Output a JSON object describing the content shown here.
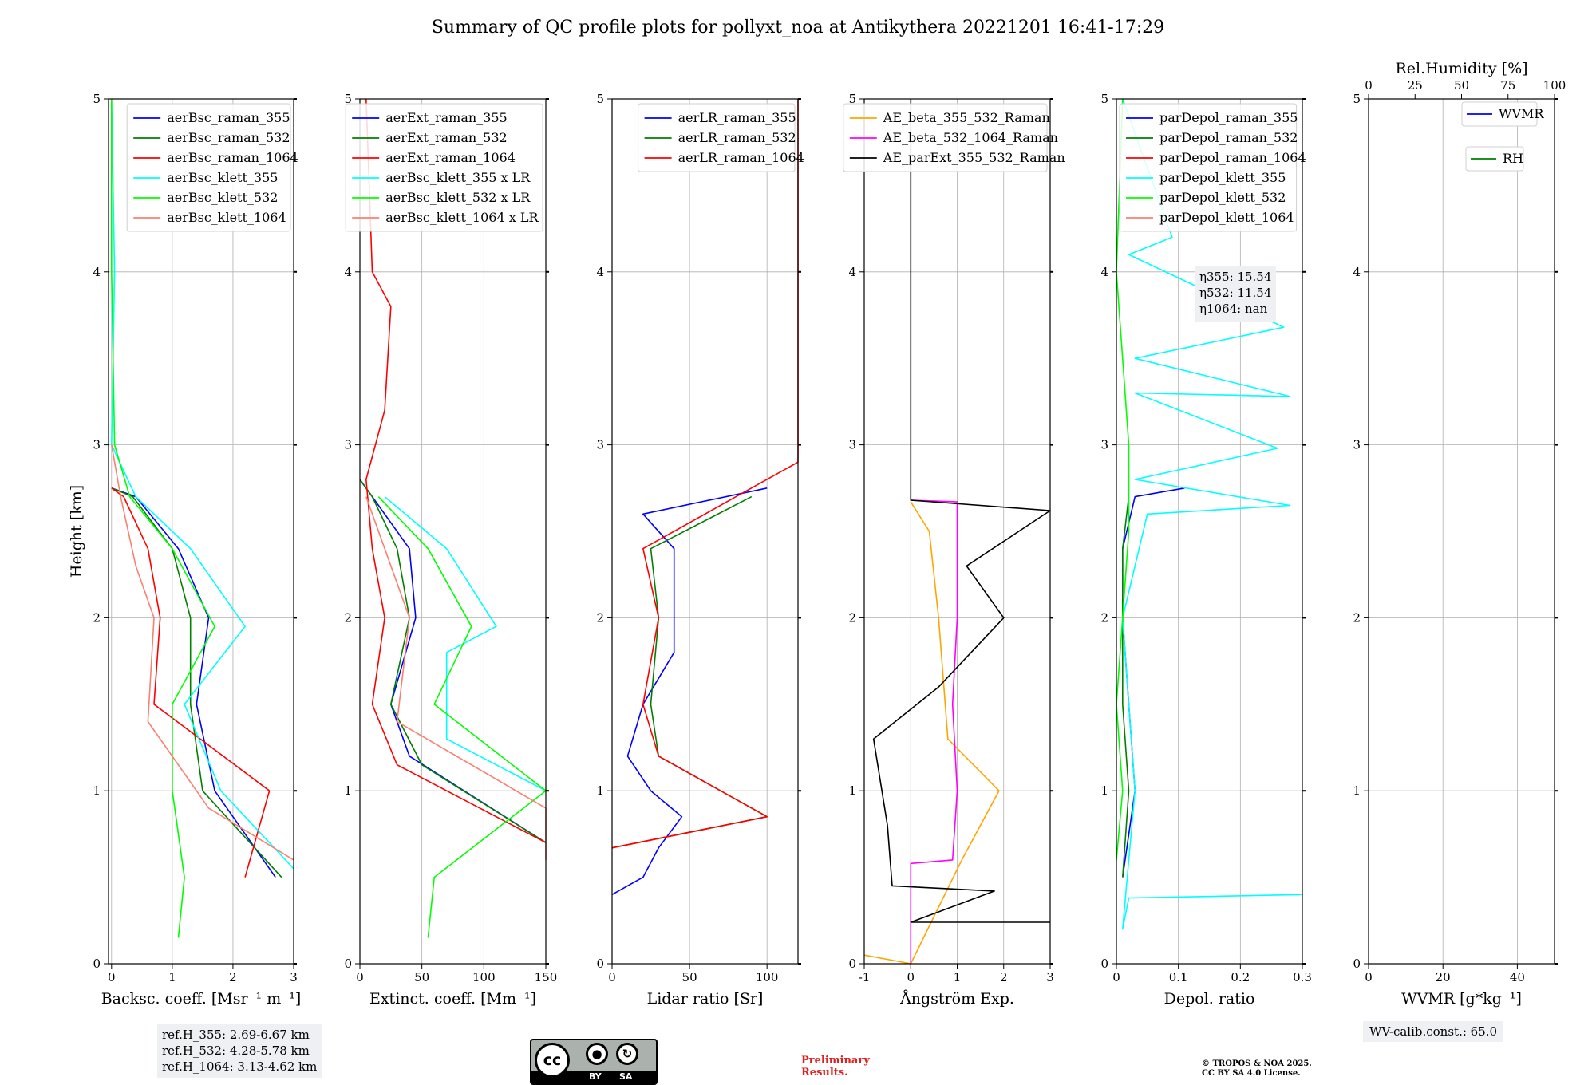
{
  "figure": {
    "title": "Summary of QC profile plots for pollyxt_noa at Antikythera 20221201 16:41-17:29",
    "ref_heights": [
      "ref.H_355: 2.69-6.67 km",
      "ref.H_532: 4.28-5.78 km",
      "ref.H_1064: 3.13-4.62 km"
    ],
    "wv_calib": "WV-calib.const.: 65.0",
    "license_badge": {
      "cc": "cc",
      "by": "BY",
      "sa": "SA"
    },
    "preliminary": [
      "Preliminary",
      "Results."
    ],
    "copyright": [
      "© TROPOS & NOA 2025.",
      "CC BY SA 4.0 License."
    ]
  },
  "colors": {
    "blue": "#0000ff",
    "green": "#007f00",
    "red": "#ff0000",
    "cyan": "#00ffff",
    "lime": "#00ff00",
    "salmon": "#fa8072",
    "orange": "#ffa500",
    "magenta": "#ff00ff",
    "black": "#000000"
  },
  "chart_data": [
    {
      "type": "line",
      "ylabel": "Height [km]",
      "xlabel": "Backsc. coeff. [Msr⁻¹ m⁻¹]",
      "xlim": [
        -0.05,
        3
      ],
      "ylim": [
        0,
        5
      ],
      "xticks": [
        0,
        1,
        2,
        3
      ],
      "yticks": [
        0,
        1,
        2,
        3,
        4,
        5
      ],
      "grid": true,
      "legend": "top-right",
      "series": [
        {
          "name": "aerBsc_raman_355",
          "color": "#0000ff",
          "points": [
            [
              2.7,
              0.5
            ],
            [
              1.7,
              1.0
            ],
            [
              1.4,
              1.5
            ],
            [
              1.6,
              2.0
            ],
            [
              1.1,
              2.4
            ],
            [
              0.4,
              2.7
            ],
            [
              0.0,
              2.75
            ]
          ]
        },
        {
          "name": "aerBsc_raman_532",
          "color": "#007f00",
          "points": [
            [
              2.8,
              0.5
            ],
            [
              1.5,
              1.0
            ],
            [
              1.3,
              1.5
            ],
            [
              1.3,
              2.0
            ],
            [
              1.0,
              2.4
            ],
            [
              0.35,
              2.7
            ],
            [
              0.0,
              2.75
            ]
          ]
        },
        {
          "name": "aerBsc_raman_1064",
          "color": "#ff0000",
          "points": [
            [
              2.2,
              0.5
            ],
            [
              2.6,
              1.0
            ],
            [
              0.7,
              1.5
            ],
            [
              0.8,
              2.0
            ],
            [
              0.6,
              2.4
            ],
            [
              0.2,
              2.7
            ],
            [
              0.0,
              2.75
            ]
          ]
        },
        {
          "name": "aerBsc_klett_355",
          "color": "#00ffff",
          "points": [
            [
              3.0,
              0.55
            ],
            [
              1.8,
              1.0
            ],
            [
              1.2,
              1.5
            ],
            [
              2.2,
              1.95
            ],
            [
              1.3,
              2.4
            ],
            [
              0.4,
              2.7
            ],
            [
              0.0,
              3.0
            ],
            [
              0.05,
              4.0
            ],
            [
              0.0,
              5.0
            ]
          ]
        },
        {
          "name": "aerBsc_klett_532",
          "color": "#00ff00",
          "points": [
            [
              1.1,
              0.15
            ],
            [
              1.2,
              0.5
            ],
            [
              1.0,
              1.0
            ],
            [
              1.0,
              1.5
            ],
            [
              1.7,
              1.95
            ],
            [
              1.0,
              2.4
            ],
            [
              0.3,
              2.7
            ],
            [
              0.05,
              3.0
            ],
            [
              0.0,
              4.0
            ],
            [
              0.0,
              5.0
            ]
          ]
        },
        {
          "name": "aerBsc_klett_1064",
          "color": "#fa8072",
          "points": [
            [
              3.0,
              0.6
            ],
            [
              1.6,
              0.9
            ],
            [
              0.6,
              1.4
            ],
            [
              0.7,
              2.0
            ],
            [
              0.4,
              2.3
            ],
            [
              0.15,
              2.7
            ],
            [
              0.0,
              3.0
            ]
          ]
        }
      ]
    },
    {
      "type": "line",
      "xlabel": "Extinct. coeff. [Mm⁻¹]",
      "xlim": [
        0,
        150
      ],
      "ylim": [
        0,
        5
      ],
      "xticks": [
        0,
        50,
        100,
        150
      ],
      "yticks": [
        0,
        1,
        2,
        3,
        4,
        5
      ],
      "grid": true,
      "legend": "top-right",
      "series": [
        {
          "name": "aerExt_raman_355",
          "color": "#0000ff",
          "points": [
            [
              150,
              0.7
            ],
            [
              40,
              1.2
            ],
            [
              25,
              1.5
            ],
            [
              45,
              2.0
            ],
            [
              40,
              2.4
            ],
            [
              10,
              2.7
            ],
            [
              0,
              2.8
            ]
          ]
        },
        {
          "name": "aerExt_raman_532",
          "color": "#007f00",
          "points": [
            [
              150,
              0.7
            ],
            [
              50,
              1.15
            ],
            [
              25,
              1.5
            ],
            [
              40,
              2.0
            ],
            [
              30,
              2.4
            ],
            [
              10,
              2.7
            ],
            [
              0,
              2.8
            ]
          ]
        },
        {
          "name": "aerExt_raman_1064",
          "color": "#ff0000",
          "points": [
            [
              150,
              0.7
            ],
            [
              30,
              1.15
            ],
            [
              10,
              1.5
            ],
            [
              20,
              2.0
            ],
            [
              10,
              2.4
            ],
            [
              5,
              2.8
            ],
            [
              20,
              3.2
            ],
            [
              25,
              3.8
            ],
            [
              10,
              4.0
            ],
            [
              5,
              5.0
            ]
          ]
        },
        {
          "name": "aerBsc_klett_355 x LR",
          "color": "#00ffff",
          "points": [
            [
              150,
              1.0
            ],
            [
              70,
              1.3
            ],
            [
              70,
              1.8
            ],
            [
              110,
              1.95
            ],
            [
              70,
              2.4
            ],
            [
              20,
              2.7
            ]
          ]
        },
        {
          "name": "aerBsc_klett_532 x LR",
          "color": "#00ff00",
          "points": [
            [
              55,
              0.15
            ],
            [
              60,
              0.5
            ],
            [
              150,
              1.0
            ],
            [
              60,
              1.5
            ],
            [
              90,
              1.95
            ],
            [
              55,
              2.4
            ],
            [
              15,
              2.7
            ]
          ]
        },
        {
          "name": "aerBsc_klett_1064 x LR",
          "color": "#fa8072",
          "points": [
            [
              150,
              0.6
            ],
            [
              150,
              0.9
            ],
            [
              30,
              1.4
            ],
            [
              40,
              2.0
            ],
            [
              20,
              2.4
            ],
            [
              5,
              2.7
            ]
          ]
        }
      ]
    },
    {
      "type": "line",
      "xlabel": "Lidar ratio [Sr]",
      "xlim": [
        0,
        120
      ],
      "ylim": [
        0,
        5
      ],
      "xticks": [
        0,
        50,
        100
      ],
      "yticks": [
        0,
        1,
        2,
        3,
        4,
        5
      ],
      "grid": true,
      "legend": "top-right",
      "series": [
        {
          "name": "aerLR_raman_355",
          "color": "#0000ff",
          "points": [
            [
              0,
              0.4
            ],
            [
              20,
              0.5
            ],
            [
              30,
              0.67
            ],
            [
              45,
              0.85
            ],
            [
              25,
              1.0
            ],
            [
              10,
              1.2
            ],
            [
              20,
              1.5
            ],
            [
              40,
              1.8
            ],
            [
              40,
              2.0
            ],
            [
              40,
              2.4
            ],
            [
              20,
              2.6
            ],
            [
              100,
              2.75
            ]
          ]
        },
        {
          "name": "aerLR_raman_532",
          "color": "#007f00",
          "points": [
            [
              0,
              0.67
            ],
            [
              100,
              0.85
            ],
            [
              30,
              1.2
            ],
            [
              25,
              1.5
            ],
            [
              30,
              2.0
            ],
            [
              25,
              2.4
            ],
            [
              90,
              2.7
            ]
          ]
        },
        {
          "name": "aerLR_raman_1064",
          "color": "#ff0000",
          "points": [
            [
              0,
              0.67
            ],
            [
              100,
              0.85
            ],
            [
              30,
              1.2
            ],
            [
              20,
              1.5
            ],
            [
              30,
              2.0
            ],
            [
              20,
              2.4
            ],
            [
              80,
              2.7
            ],
            [
              120,
              2.9
            ],
            [
              120,
              5.0
            ]
          ]
        }
      ]
    },
    {
      "type": "line",
      "xlabel": "Ångström Exp.",
      "xlim": [
        -1,
        3
      ],
      "ylim": [
        0,
        5
      ],
      "xticks": [
        -1,
        0,
        1,
        2,
        3
      ],
      "yticks": [
        0,
        1,
        2,
        3,
        4,
        5
      ],
      "grid": true,
      "legend": "top-right",
      "series": [
        {
          "name": "AE_beta_355_532_Raman",
          "color": "#ffa500",
          "points": [
            [
              -1,
              0.05
            ],
            [
              0,
              0.0
            ],
            [
              1.1,
              0.6
            ],
            [
              1.9,
              1.0
            ],
            [
              0.8,
              1.3
            ],
            [
              0.6,
              2.0
            ],
            [
              0.4,
              2.5
            ],
            [
              0,
              2.67
            ]
          ]
        },
        {
          "name": "AE_beta_532_1064_Raman",
          "color": "#ff00ff",
          "points": [
            [
              0,
              0.0
            ],
            [
              0,
              0.58
            ],
            [
              0.9,
              0.6
            ],
            [
              1.0,
              1.0
            ],
            [
              0.9,
              1.5
            ],
            [
              1.0,
              2.0
            ],
            [
              1.0,
              2.5
            ],
            [
              1.0,
              2.67
            ],
            [
              0,
              2.68
            ]
          ]
        },
        {
          "name": "AE_parExt_355_532_Raman",
          "color": "#000000",
          "points": [
            [
              0,
              5.0
            ],
            [
              0,
              2.68
            ],
            [
              3,
              2.62
            ],
            [
              1.2,
              2.3
            ],
            [
              2.0,
              2.0
            ],
            [
              0.6,
              1.6
            ],
            [
              -0.8,
              1.3
            ],
            [
              -0.5,
              0.8
            ],
            [
              -0.4,
              0.45
            ],
            [
              1.8,
              0.42
            ],
            [
              0,
              0.24
            ],
            [
              3,
              0.24
            ]
          ]
        }
      ]
    },
    {
      "type": "line",
      "xlabel": "Depol. ratio",
      "xlim": [
        0,
        0.3
      ],
      "ylim": [
        0,
        5
      ],
      "xticks": [
        0.0,
        0.1,
        0.2,
        0.3
      ],
      "yticks": [
        0,
        1,
        2,
        3,
        4,
        5
      ],
      "grid": true,
      "legend": "top-left",
      "annotation": [
        "η355: 15.54",
        "η532: 11.54",
        "η1064: nan"
      ],
      "series": [
        {
          "name": "parDepol_raman_355",
          "color": "#0000ff",
          "points": [
            [
              0.01,
              0.5
            ],
            [
              0.03,
              1.0
            ],
            [
              0.02,
              1.5
            ],
            [
              0.01,
              2.0
            ],
            [
              0.01,
              2.4
            ],
            [
              0.03,
              2.7
            ],
            [
              0.11,
              2.75
            ]
          ]
        },
        {
          "name": "parDepol_raman_532",
          "color": "#007f00",
          "points": [
            [
              0.01,
              0.5
            ],
            [
              0.02,
              1.0
            ],
            [
              0.01,
              1.5
            ],
            [
              0.01,
              2.0
            ],
            [
              0.01,
              2.4
            ],
            [
              0.02,
              2.7
            ]
          ]
        },
        {
          "name": "parDepol_raman_1064",
          "color": "#ff0000",
          "points": []
        },
        {
          "name": "parDepol_klett_355",
          "color": "#00ffff",
          "points": [
            [
              0.3,
              0.4
            ],
            [
              0.02,
              0.38
            ],
            [
              0.01,
              0.2
            ],
            [
              0.02,
              0.6
            ],
            [
              0.03,
              1.0
            ],
            [
              0.02,
              1.5
            ],
            [
              0.01,
              2.0
            ],
            [
              0.05,
              2.6
            ],
            [
              0.28,
              2.65
            ],
            [
              0.03,
              2.8
            ],
            [
              0.26,
              2.98
            ],
            [
              0.03,
              3.3
            ],
            [
              0.28,
              3.28
            ],
            [
              0.03,
              3.5
            ],
            [
              0.27,
              3.68
            ],
            [
              0.02,
              4.1
            ],
            [
              0.09,
              4.2
            ],
            [
              0.01,
              5.0
            ]
          ]
        },
        {
          "name": "parDepol_klett_532",
          "color": "#00ff00",
          "points": [
            [
              0.0,
              0.6
            ],
            [
              0.01,
              1.0
            ],
            [
              0.0,
              1.5
            ],
            [
              0.01,
              2.0
            ],
            [
              0.02,
              2.5
            ],
            [
              0.02,
              3.0
            ],
            [
              0.0,
              4.0
            ],
            [
              0.01,
              5.0
            ]
          ]
        },
        {
          "name": "parDepol_klett_1064",
          "color": "#fa8072",
          "points": []
        }
      ]
    },
    {
      "type": "line",
      "xlabel": "WVMR [g*kg⁻¹]",
      "xlim": [
        0,
        50
      ],
      "ylim": [
        0,
        5
      ],
      "xticks": [
        0,
        20,
        40
      ],
      "yticks": [
        0,
        1,
        2,
        3,
        4,
        5
      ],
      "top_xlabel": "Rel.Humidity [%]",
      "top_xticks": [
        0,
        25,
        50,
        75,
        100
      ],
      "grid": true,
      "legend": "top-right",
      "series": [
        {
          "name": "WVMR",
          "color": "#0000ff",
          "points": []
        },
        {
          "name": "RH",
          "color": "#007f00",
          "points": []
        }
      ]
    }
  ]
}
